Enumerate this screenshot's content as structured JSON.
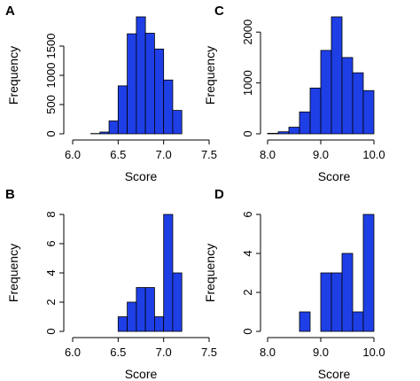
{
  "bar_color": "#1e3fe6",
  "chart_data": [
    {
      "type": "bar",
      "panel": "A",
      "xlabel": "Score",
      "ylabel": "Frequency",
      "xlim": [
        6.0,
        7.5
      ],
      "ylim": [
        0,
        2000
      ],
      "xticks": [
        "6.0",
        "6.5",
        "7.0",
        "7.5"
      ],
      "yticks": [
        "0",
        "500",
        "1000",
        "1500"
      ],
      "bins": [
        {
          "x0": 6.2,
          "x1": 6.3,
          "value": 5
        },
        {
          "x0": 6.3,
          "x1": 6.4,
          "value": 30
        },
        {
          "x0": 6.4,
          "x1": 6.5,
          "value": 220
        },
        {
          "x0": 6.5,
          "x1": 6.6,
          "value": 820
        },
        {
          "x0": 6.6,
          "x1": 6.7,
          "value": 1710
        },
        {
          "x0": 6.7,
          "x1": 6.8,
          "value": 2000
        },
        {
          "x0": 6.8,
          "x1": 6.9,
          "value": 1720
        },
        {
          "x0": 6.9,
          "x1": 7.0,
          "value": 1450
        },
        {
          "x0": 7.0,
          "x1": 7.1,
          "value": 920
        },
        {
          "x0": 7.1,
          "x1": 7.2,
          "value": 400
        }
      ]
    },
    {
      "type": "bar",
      "panel": "C",
      "xlabel": "Score",
      "ylabel": "Frequency",
      "xlim": [
        8.0,
        10.5
      ],
      "ylim": [
        0,
        2300
      ],
      "xticks": [
        "8.0",
        "9.0",
        "10.0"
      ],
      "xtick_values": [
        8.0,
        9.0,
        10.0
      ],
      "yticks": [
        "0",
        "1000",
        "2000"
      ],
      "bins": [
        {
          "x0": 8.0,
          "x1": 8.2,
          "value": 10
        },
        {
          "x0": 8.2,
          "x1": 8.4,
          "value": 40
        },
        {
          "x0": 8.4,
          "x1": 8.6,
          "value": 130
        },
        {
          "x0": 8.6,
          "x1": 8.8,
          "value": 430
        },
        {
          "x0": 8.8,
          "x1": 9.0,
          "value": 900
        },
        {
          "x0": 9.0,
          "x1": 9.2,
          "value": 1640
        },
        {
          "x0": 9.2,
          "x1": 9.4,
          "value": 2300
        },
        {
          "x0": 9.4,
          "x1": 9.6,
          "value": 1500
        },
        {
          "x0": 9.6,
          "x1": 9.8,
          "value": 1200
        },
        {
          "x0": 9.8,
          "x1": 10.0,
          "value": 850
        }
      ]
    },
    {
      "type": "bar",
      "panel": "B",
      "xlabel": "Score",
      "ylabel": "Frequency",
      "xlim": [
        6.0,
        7.5
      ],
      "ylim": [
        0,
        8
      ],
      "xticks": [
        "6.0",
        "6.5",
        "7.0",
        "7.5"
      ],
      "yticks": [
        "0",
        "2",
        "4",
        "6",
        "8"
      ],
      "bins": [
        {
          "x0": 6.5,
          "x1": 6.6,
          "value": 1
        },
        {
          "x0": 6.6,
          "x1": 6.7,
          "value": 2
        },
        {
          "x0": 6.7,
          "x1": 6.8,
          "value": 3
        },
        {
          "x0": 6.8,
          "x1": 6.9,
          "value": 3
        },
        {
          "x0": 6.9,
          "x1": 7.0,
          "value": 1
        },
        {
          "x0": 7.0,
          "x1": 7.1,
          "value": 8
        },
        {
          "x0": 7.1,
          "x1": 7.2,
          "value": 4
        }
      ]
    },
    {
      "type": "bar",
      "panel": "D",
      "xlabel": "Score",
      "ylabel": "Frequency",
      "xlim": [
        8.0,
        10.5
      ],
      "ylim": [
        0,
        6
      ],
      "xticks": [
        "8.0",
        "9.0",
        "10.0"
      ],
      "xtick_values": [
        8.0,
        9.0,
        10.0
      ],
      "yticks": [
        "0",
        "2",
        "4",
        "6"
      ],
      "bins": [
        {
          "x0": 8.6,
          "x1": 8.8,
          "value": 1
        },
        {
          "x0": 8.8,
          "x1": 9.0,
          "value": 0
        },
        {
          "x0": 9.0,
          "x1": 9.2,
          "value": 3
        },
        {
          "x0": 9.2,
          "x1": 9.4,
          "value": 3
        },
        {
          "x0": 9.4,
          "x1": 9.6,
          "value": 4
        },
        {
          "x0": 9.6,
          "x1": 9.8,
          "value": 1
        },
        {
          "x0": 9.8,
          "x1": 10.0,
          "value": 6
        }
      ]
    }
  ]
}
